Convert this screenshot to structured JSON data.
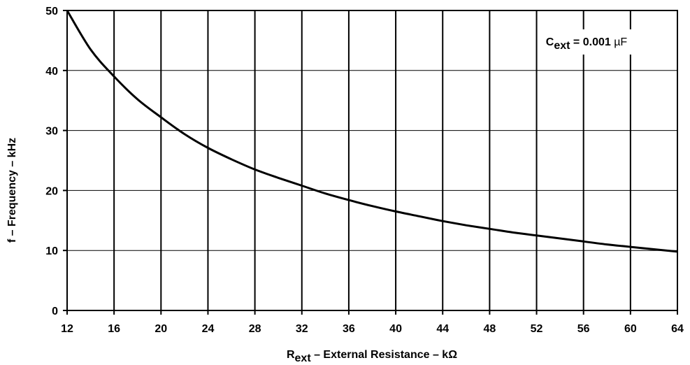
{
  "chart_data": {
    "type": "line",
    "title": "",
    "xlabel": {
      "main": "R",
      "sub": "ext",
      "rest": " – External Resistance – kΩ"
    },
    "ylabel": "f – Frequency – kHz",
    "xlim": [
      12,
      64
    ],
    "ylim": [
      0,
      50
    ],
    "x_ticks": [
      "12",
      "16",
      "20",
      "24",
      "28",
      "32",
      "36",
      "40",
      "44",
      "48",
      "52",
      "56",
      "60",
      "64"
    ],
    "y_ticks": [
      "0",
      "10",
      "20",
      "30",
      "40",
      "50"
    ],
    "grid": true,
    "annotation": {
      "main": "C",
      "sub": "ext",
      "rest": " = 0.001 ",
      "unit": "µF"
    },
    "series": [
      {
        "x": [
          12,
          14,
          16,
          18,
          20,
          22,
          24,
          26,
          28,
          30,
          32,
          34,
          36,
          38,
          40,
          42,
          44,
          46,
          48,
          50,
          52,
          54,
          56,
          58,
          60,
          62,
          64
        ],
        "y": [
          50.0,
          43.5,
          39.0,
          35.2,
          32.2,
          29.4,
          27.1,
          25.2,
          23.5,
          22.1,
          20.8,
          19.5,
          18.4,
          17.4,
          16.5,
          15.7,
          14.9,
          14.2,
          13.6,
          13.0,
          12.5,
          12.0,
          11.5,
          11.0,
          10.6,
          10.2,
          9.8
        ]
      }
    ]
  }
}
